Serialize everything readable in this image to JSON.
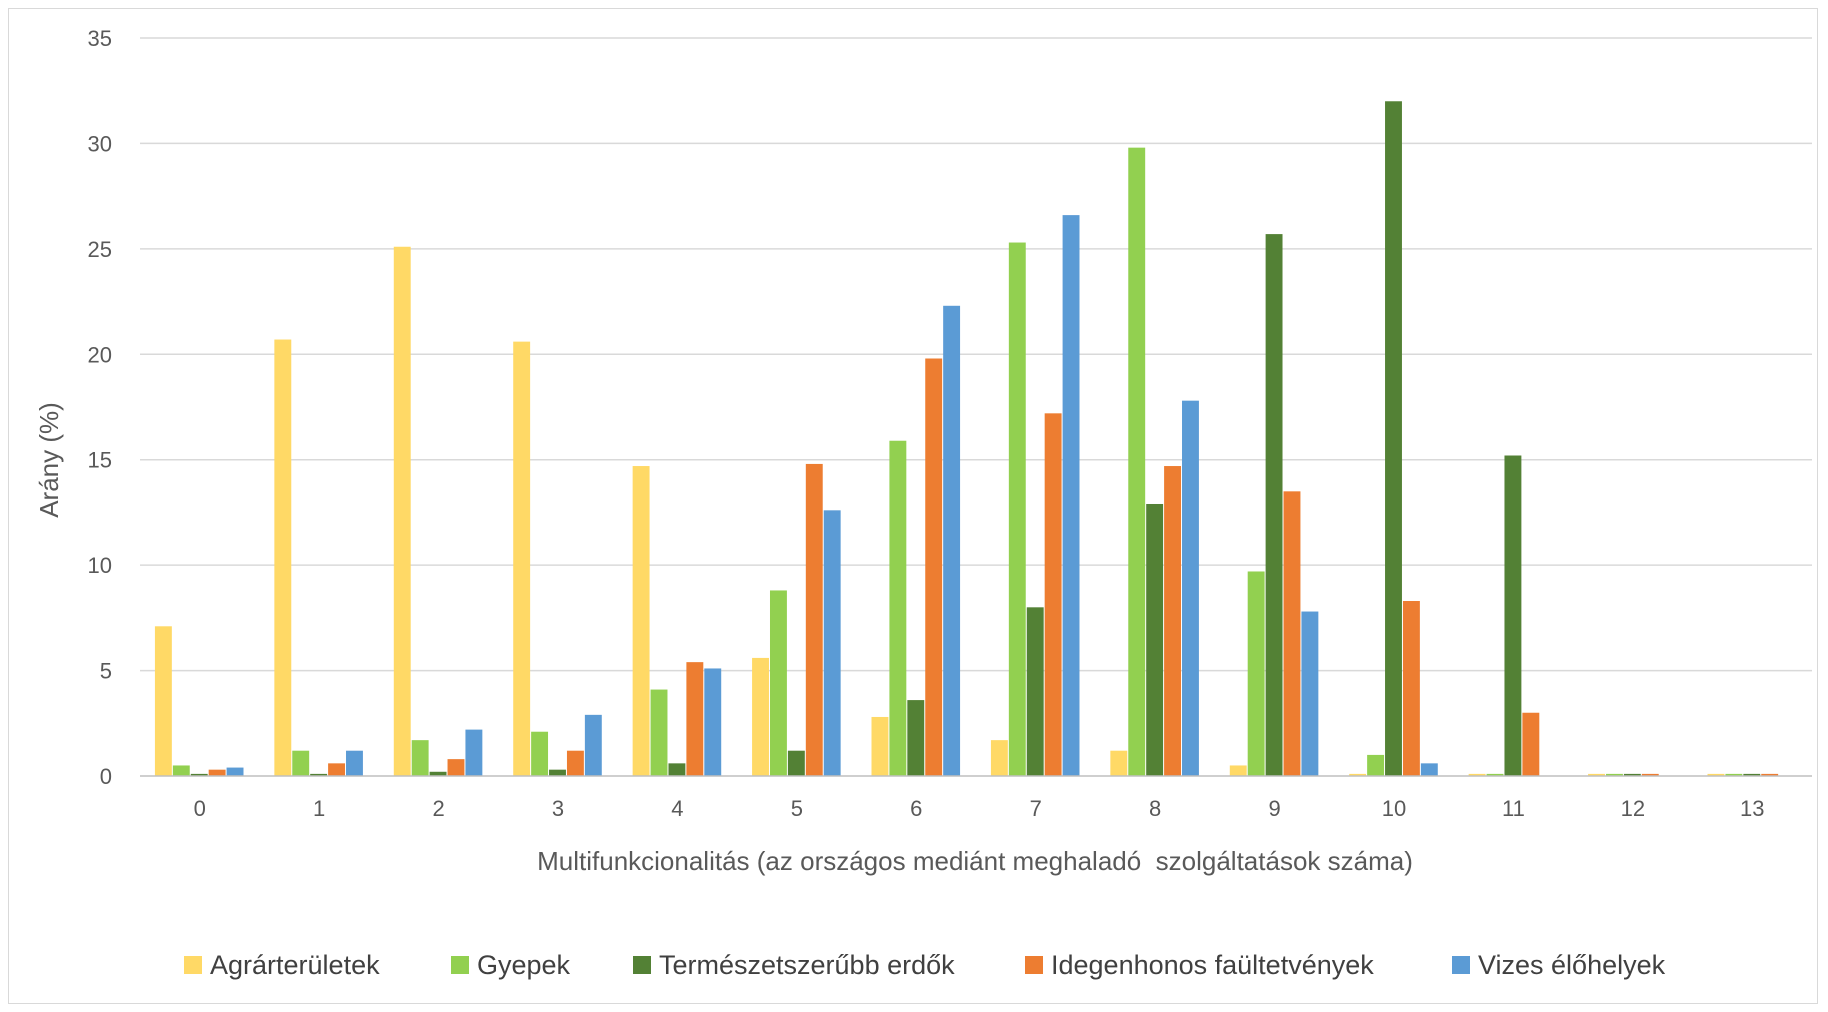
{
  "chart_data": {
    "type": "bar",
    "categories": [
      "0",
      "1",
      "2",
      "3",
      "4",
      "5",
      "6",
      "7",
      "8",
      "9",
      "10",
      "11",
      "12",
      "13"
    ],
    "xlabel": "Multifunkcionalitás (az országos mediánt meghaladó  szolgáltatások száma)",
    "ylabel": "Arány (%)",
    "ylim": [
      0,
      35
    ],
    "yticks": [
      "0",
      "5",
      "10",
      "15",
      "20",
      "25",
      "30",
      "35"
    ],
    "grid": true,
    "legend_position": "bottom",
    "series": [
      {
        "name": "Agrárterületek",
        "color": "#FFD966",
        "values": [
          7.1,
          20.7,
          25.1,
          20.6,
          14.7,
          5.6,
          2.8,
          1.7,
          1.2,
          0.5,
          0.1,
          0.1,
          0.1,
          0.1
        ]
      },
      {
        "name": "Gyepek",
        "color": "#92D050",
        "values": [
          0.5,
          1.2,
          1.7,
          2.1,
          4.1,
          8.8,
          15.9,
          25.3,
          29.8,
          9.7,
          1.0,
          0.1,
          0.1,
          0.1
        ]
      },
      {
        "name": "Természetszerűbb erdők",
        "color": "#538135",
        "values": [
          0.1,
          0.1,
          0.2,
          0.3,
          0.6,
          1.2,
          3.6,
          8.0,
          12.9,
          25.7,
          32.0,
          15.2,
          0.1,
          0.1
        ]
      },
      {
        "name": "Idegenhonos faültetvények",
        "color": "#ED7D31",
        "values": [
          0.3,
          0.6,
          0.8,
          1.2,
          5.4,
          14.8,
          19.8,
          17.2,
          14.7,
          13.5,
          8.3,
          3.0,
          0.1,
          0.1
        ]
      },
      {
        "name": "Vizes élőhelyek",
        "color": "#5B9BD5",
        "values": [
          0.4,
          1.2,
          2.2,
          2.9,
          5.1,
          12.6,
          22.3,
          26.6,
          17.8,
          7.8,
          0.6,
          0.0,
          0.0,
          0.0
        ]
      }
    ]
  }
}
